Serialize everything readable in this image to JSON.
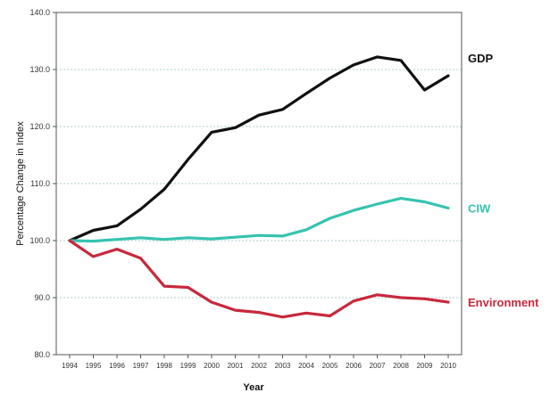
{
  "chart_data": {
    "type": "line",
    "title": "",
    "xlabel": "Year",
    "ylabel": "Percentage Change in Index",
    "ylim": [
      80,
      140
    ],
    "yticks": [
      "80.0",
      "90.0",
      "100.0",
      "110.0",
      "120.0",
      "130.0",
      "140.0"
    ],
    "x": [
      "1994",
      "1995",
      "1996",
      "1997",
      "1998",
      "1999",
      "2000",
      "2001",
      "2002",
      "2003",
      "2004",
      "2005",
      "2006",
      "2007",
      "2008",
      "2009",
      "2010"
    ],
    "grid": true,
    "legend": "inline-right",
    "series": [
      {
        "name": "GDP",
        "color": "#111111",
        "values": [
          100.0,
          101.8,
          102.6,
          105.5,
          109.0,
          114.2,
          119.0,
          119.8,
          122.0,
          123.0,
          125.8,
          128.5,
          130.8,
          132.2,
          131.6,
          126.4,
          128.9
        ]
      },
      {
        "name": "CIW",
        "color": "#36c3b0",
        "values": [
          100.0,
          99.9,
          100.2,
          100.5,
          100.2,
          100.5,
          100.3,
          100.6,
          100.9,
          100.8,
          101.9,
          103.9,
          105.3,
          106.4,
          107.4,
          106.8,
          105.7
        ]
      },
      {
        "name": "Environment",
        "color": "#c8283c",
        "values": [
          100.0,
          97.2,
          98.5,
          96.9,
          92.0,
          91.8,
          89.2,
          87.8,
          87.4,
          86.6,
          87.3,
          86.8,
          89.4,
          90.5,
          90.0,
          89.8,
          89.2
        ]
      }
    ]
  }
}
